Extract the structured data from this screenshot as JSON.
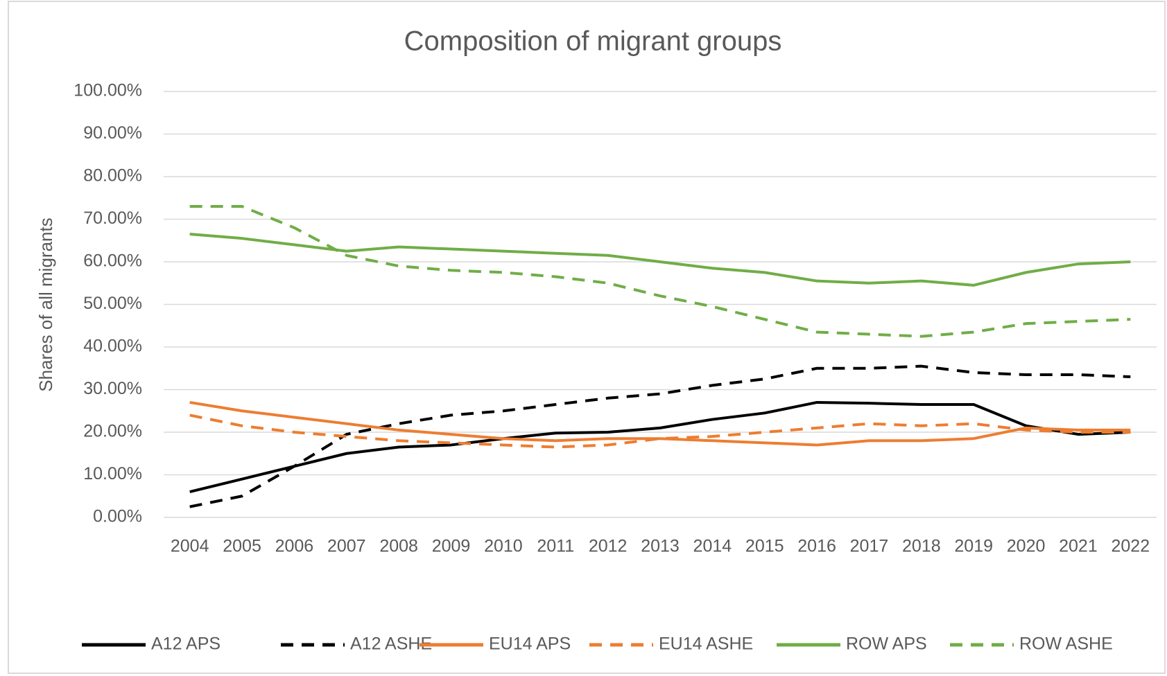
{
  "chart_data": {
    "type": "line",
    "title": "Composition of migrant groups",
    "y_label": "Shares of all migrants",
    "categories": [
      "2004",
      "2005",
      "2006",
      "2007",
      "2008",
      "2009",
      "2010",
      "2011",
      "2012",
      "2013",
      "2014",
      "2015",
      "2016",
      "2017",
      "2018",
      "2019",
      "2020",
      "2021",
      "2022"
    ],
    "ylim": [
      0,
      100
    ],
    "yticks": [
      {
        "value": 0,
        "label": "0.00%"
      },
      {
        "value": 10,
        "label": "10.00%"
      },
      {
        "value": 20,
        "label": "20.00%"
      },
      {
        "value": 30,
        "label": "30.00%"
      },
      {
        "value": 40,
        "label": "40.00%"
      },
      {
        "value": 50,
        "label": "50.00%"
      },
      {
        "value": 60,
        "label": "60.00%"
      },
      {
        "value": 70,
        "label": "70.00%"
      },
      {
        "value": 80,
        "label": "80.00%"
      },
      {
        "value": 90,
        "label": "90.00%"
      },
      {
        "value": 100,
        "label": "100.00%"
      }
    ],
    "grid": true,
    "legend": "bottom",
    "series": [
      {
        "name": "A12 APS",
        "color": "#000000",
        "dashed": false,
        "values": [
          6,
          9,
          12,
          15,
          16.5,
          17,
          18.5,
          19.8,
          20,
          21,
          23,
          24.5,
          27,
          26.8,
          26.5,
          26.5,
          21.5,
          19.5,
          20
        ]
      },
      {
        "name": "A12 ASHE",
        "color": "#000000",
        "dashed": true,
        "values": [
          2.5,
          5,
          12,
          19.5,
          22,
          24,
          25,
          26.5,
          28,
          29,
          31,
          32.5,
          35,
          35,
          35.5,
          34,
          33.5,
          33.5,
          33
        ]
      },
      {
        "name": "EU14 APS",
        "color": "#ed7d31",
        "dashed": false,
        "values": [
          27,
          25,
          23.5,
          22,
          20.5,
          19.5,
          18.5,
          18,
          18.5,
          18.5,
          18,
          17.5,
          17,
          18,
          18,
          18.5,
          21,
          20.5,
          20.5
        ]
      },
      {
        "name": "EU14 ASHE",
        "color": "#ed7d31",
        "dashed": true,
        "values": [
          24,
          21.5,
          20,
          19,
          18,
          17.5,
          17,
          16.5,
          17,
          18.5,
          19,
          20,
          21,
          22,
          21.5,
          22,
          20.5,
          20,
          20
        ]
      },
      {
        "name": "ROW APS",
        "color": "#70ad47",
        "dashed": false,
        "values": [
          66.5,
          65.5,
          64,
          62.5,
          63.5,
          63,
          62.5,
          62,
          61.5,
          60,
          58.5,
          57.5,
          55.5,
          55,
          55.5,
          54.5,
          57.5,
          59.5,
          60
        ]
      },
      {
        "name": "ROW ASHE",
        "color": "#70ad47",
        "dashed": true,
        "values": [
          73,
          73,
          68,
          61.5,
          59,
          58,
          57.5,
          56.5,
          55,
          52,
          49.5,
          46.5,
          43.5,
          43,
          42.5,
          43.5,
          45.5,
          46,
          46.5
        ]
      }
    ]
  }
}
